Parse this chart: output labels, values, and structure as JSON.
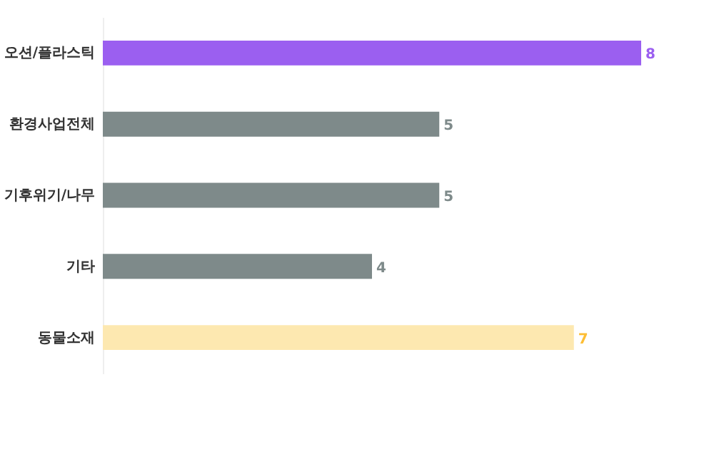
{
  "chart_data": {
    "type": "bar",
    "orientation": "horizontal",
    "data_labels": true,
    "categories": [
      "오션/플라스틱",
      "환경사업전체",
      "기후위기/나무",
      "기타",
      "동물소재"
    ],
    "values": [
      8,
      5,
      5,
      4,
      7
    ],
    "colors": [
      "#9b5ff0",
      "#7e8a8a",
      "#7e8a8a",
      "#7e8a8a",
      "#fde8b0"
    ]
  }
}
